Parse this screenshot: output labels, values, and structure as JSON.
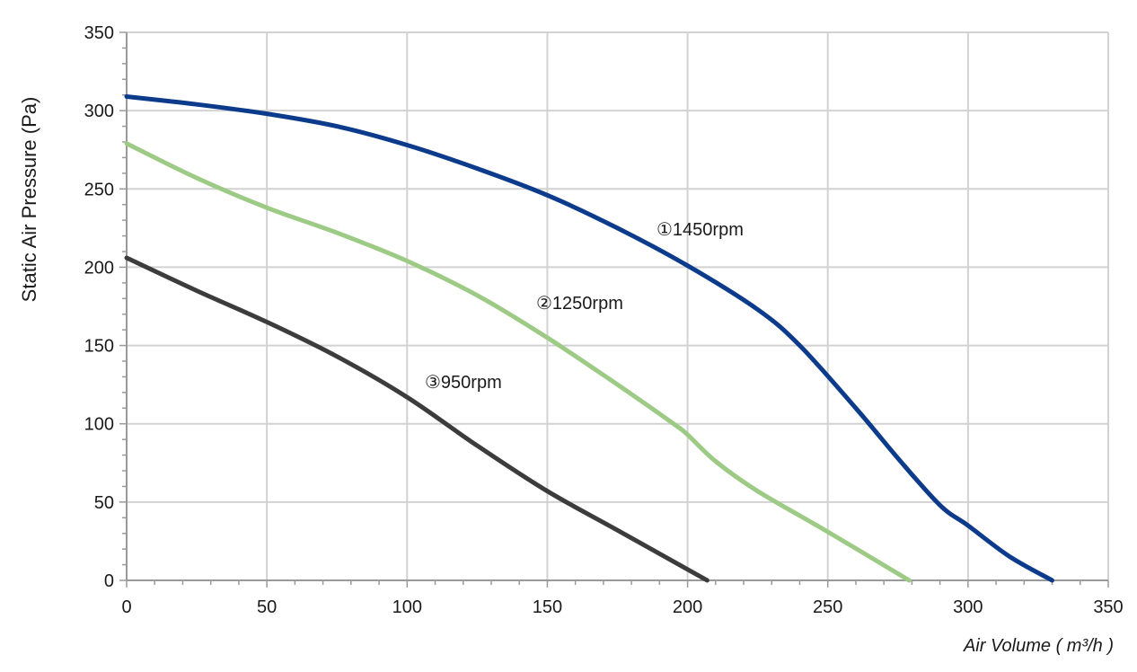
{
  "chart_data": {
    "type": "line",
    "title": "",
    "xlabel": "Air Volume ( m³/h )",
    "ylabel": "Static Air Pressure  (Pa)",
    "xlim": [
      0,
      350
    ],
    "ylim": [
      0,
      350
    ],
    "x_ticks": [
      0,
      50,
      100,
      150,
      200,
      250,
      300,
      350
    ],
    "y_ticks": [
      0,
      50,
      100,
      150,
      200,
      250,
      300,
      350
    ],
    "grid": true,
    "legend": "none",
    "series": [
      {
        "name": "①1450rpm",
        "color": "#0d3b8c",
        "points": [
          [
            0,
            309
          ],
          [
            25,
            304
          ],
          [
            50,
            298
          ],
          [
            75,
            290
          ],
          [
            100,
            278
          ],
          [
            125,
            263
          ],
          [
            150,
            246
          ],
          [
            175,
            225
          ],
          [
            200,
            201
          ],
          [
            225,
            173
          ],
          [
            240,
            150
          ],
          [
            260,
            110
          ],
          [
            275,
            78
          ],
          [
            290,
            48
          ],
          [
            300,
            35
          ],
          [
            315,
            15
          ],
          [
            330,
            0
          ]
        ]
      },
      {
        "name": "②1250rpm",
        "color": "#9dcb86",
        "points": [
          [
            0,
            279
          ],
          [
            25,
            257
          ],
          [
            50,
            238
          ],
          [
            75,
            222
          ],
          [
            100,
            204
          ],
          [
            125,
            182
          ],
          [
            150,
            155
          ],
          [
            175,
            125
          ],
          [
            195,
            100
          ],
          [
            200,
            93
          ],
          [
            210,
            76
          ],
          [
            225,
            57
          ],
          [
            250,
            31
          ],
          [
            279,
            0
          ]
        ]
      },
      {
        "name": "③950rpm",
        "color": "#3c3c3c",
        "points": [
          [
            0,
            206
          ],
          [
            25,
            185
          ],
          [
            50,
            165
          ],
          [
            75,
            143
          ],
          [
            100,
            117
          ],
          [
            125,
            86
          ],
          [
            150,
            57
          ],
          [
            175,
            32
          ],
          [
            207,
            0
          ]
        ]
      }
    ]
  }
}
